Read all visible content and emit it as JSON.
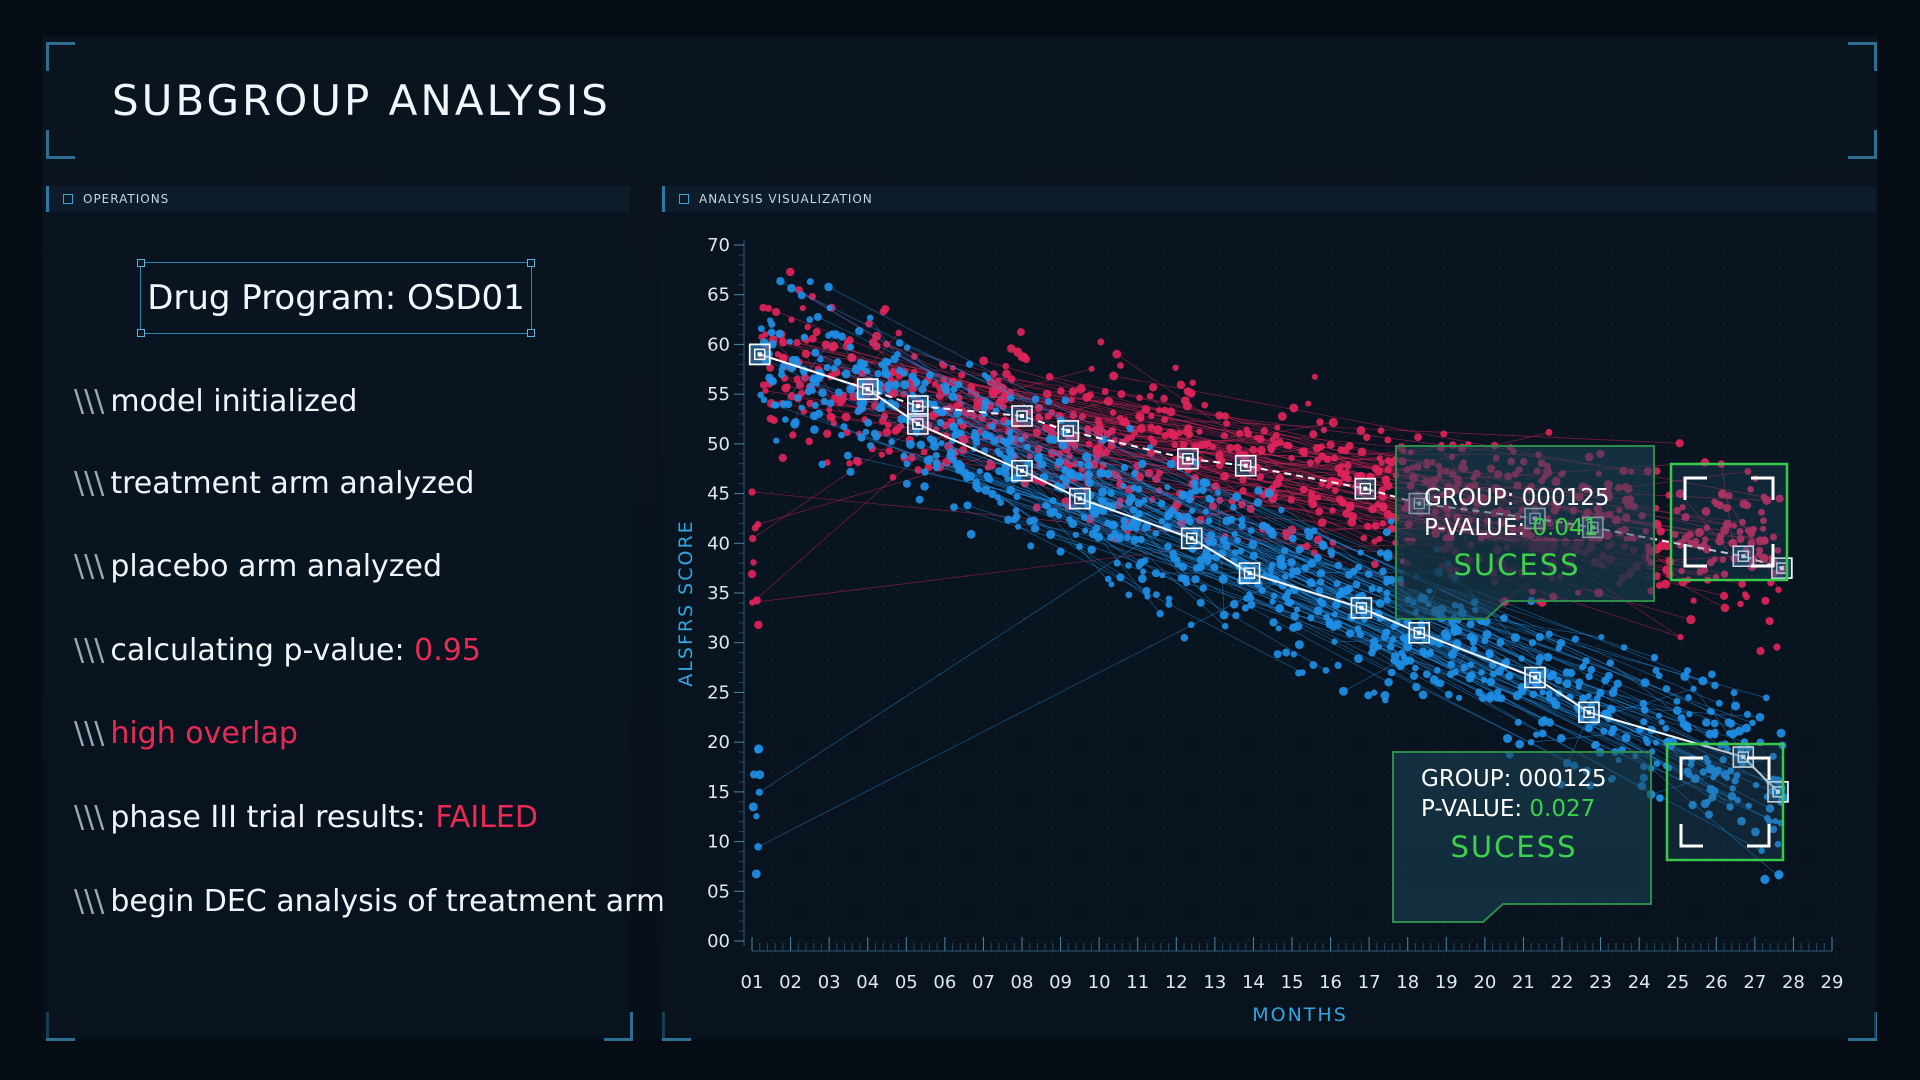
{
  "page": {
    "title": "SUBGROUP ANALYSIS"
  },
  "operations": {
    "header": "OPERATIONS",
    "program": "Drug Program: OSD01",
    "log_prefix": "\\\\\\",
    "log": [
      {
        "text": "model initialized",
        "highlight": ""
      },
      {
        "text": "treatment arm analyzed",
        "highlight": ""
      },
      {
        "text": "placebo arm analyzed",
        "highlight": ""
      },
      {
        "text": "calculating p-value: ",
        "highlight": "0.95"
      },
      {
        "text": "",
        "highlight": "high overlap"
      },
      {
        "text": "phase III trial results: ",
        "highlight": "FAILED"
      },
      {
        "text": "begin DEC analysis of treatment arm",
        "highlight": ""
      }
    ]
  },
  "visualization": {
    "header": "ANALYSIS VISUALIZATION",
    "callouts": [
      {
        "group": "GROUP: 000125",
        "pvalue_label": "P-VALUE: ",
        "pvalue": "0.041",
        "status": "SUCESS"
      },
      {
        "group": "GROUP: 000125",
        "pvalue_label": "P-VALUE: ",
        "pvalue": "0.027",
        "status": "SUCESS"
      }
    ]
  },
  "colors": {
    "accent": "#2fa6e0",
    "treatment": "#1e8fe6",
    "placebo": "#e0245a",
    "success": "#39d24a",
    "fail": "#e82a55"
  },
  "chart_data": {
    "type": "scatter",
    "title": "",
    "xlabel": "MONTHS",
    "ylabel": "ALSFRS SCORE",
    "x_ticks": [
      "01",
      "02",
      "03",
      "04",
      "05",
      "06",
      "07",
      "08",
      "09",
      "10",
      "11",
      "12",
      "13",
      "14",
      "15",
      "16",
      "17",
      "18",
      "19",
      "20",
      "21",
      "22",
      "23",
      "24",
      "25",
      "26",
      "27",
      "28",
      "29"
    ],
    "y_ticks": [
      "00",
      "05",
      "10",
      "15",
      "20",
      "25",
      "30",
      "35",
      "40",
      "45",
      "50",
      "55",
      "60",
      "65",
      "70"
    ],
    "xlim": [
      1,
      29
    ],
    "ylim": [
      0,
      70
    ],
    "series": [
      {
        "color": "#e0245a",
        "trend": [
          [
            1.2,
            59
          ],
          [
            4,
            55.5
          ],
          [
            5.3,
            53.8
          ],
          [
            8,
            52.8
          ],
          [
            9.2,
            51.3
          ],
          [
            12.3,
            48.5
          ],
          [
            13.8,
            47.8
          ],
          [
            16.9,
            45.5
          ],
          [
            18.3,
            44
          ],
          [
            21.3,
            42.5
          ],
          [
            22.8,
            41.6
          ],
          [
            26.7,
            38.7
          ],
          [
            27.7,
            37.5
          ]
        ]
      },
      {
        "color": "#1e8fe6",
        "trend": [
          [
            1.2,
            59
          ],
          [
            4,
            55.5
          ],
          [
            5.3,
            52
          ],
          [
            8,
            47.3
          ],
          [
            9.5,
            44.5
          ],
          [
            12.4,
            40.5
          ],
          [
            13.9,
            37
          ],
          [
            16.8,
            33.5
          ],
          [
            18.3,
            31
          ],
          [
            21.3,
            26.5
          ],
          [
            22.7,
            23
          ],
          [
            26.7,
            18.5
          ],
          [
            27.6,
            15
          ]
        ]
      }
    ]
  }
}
